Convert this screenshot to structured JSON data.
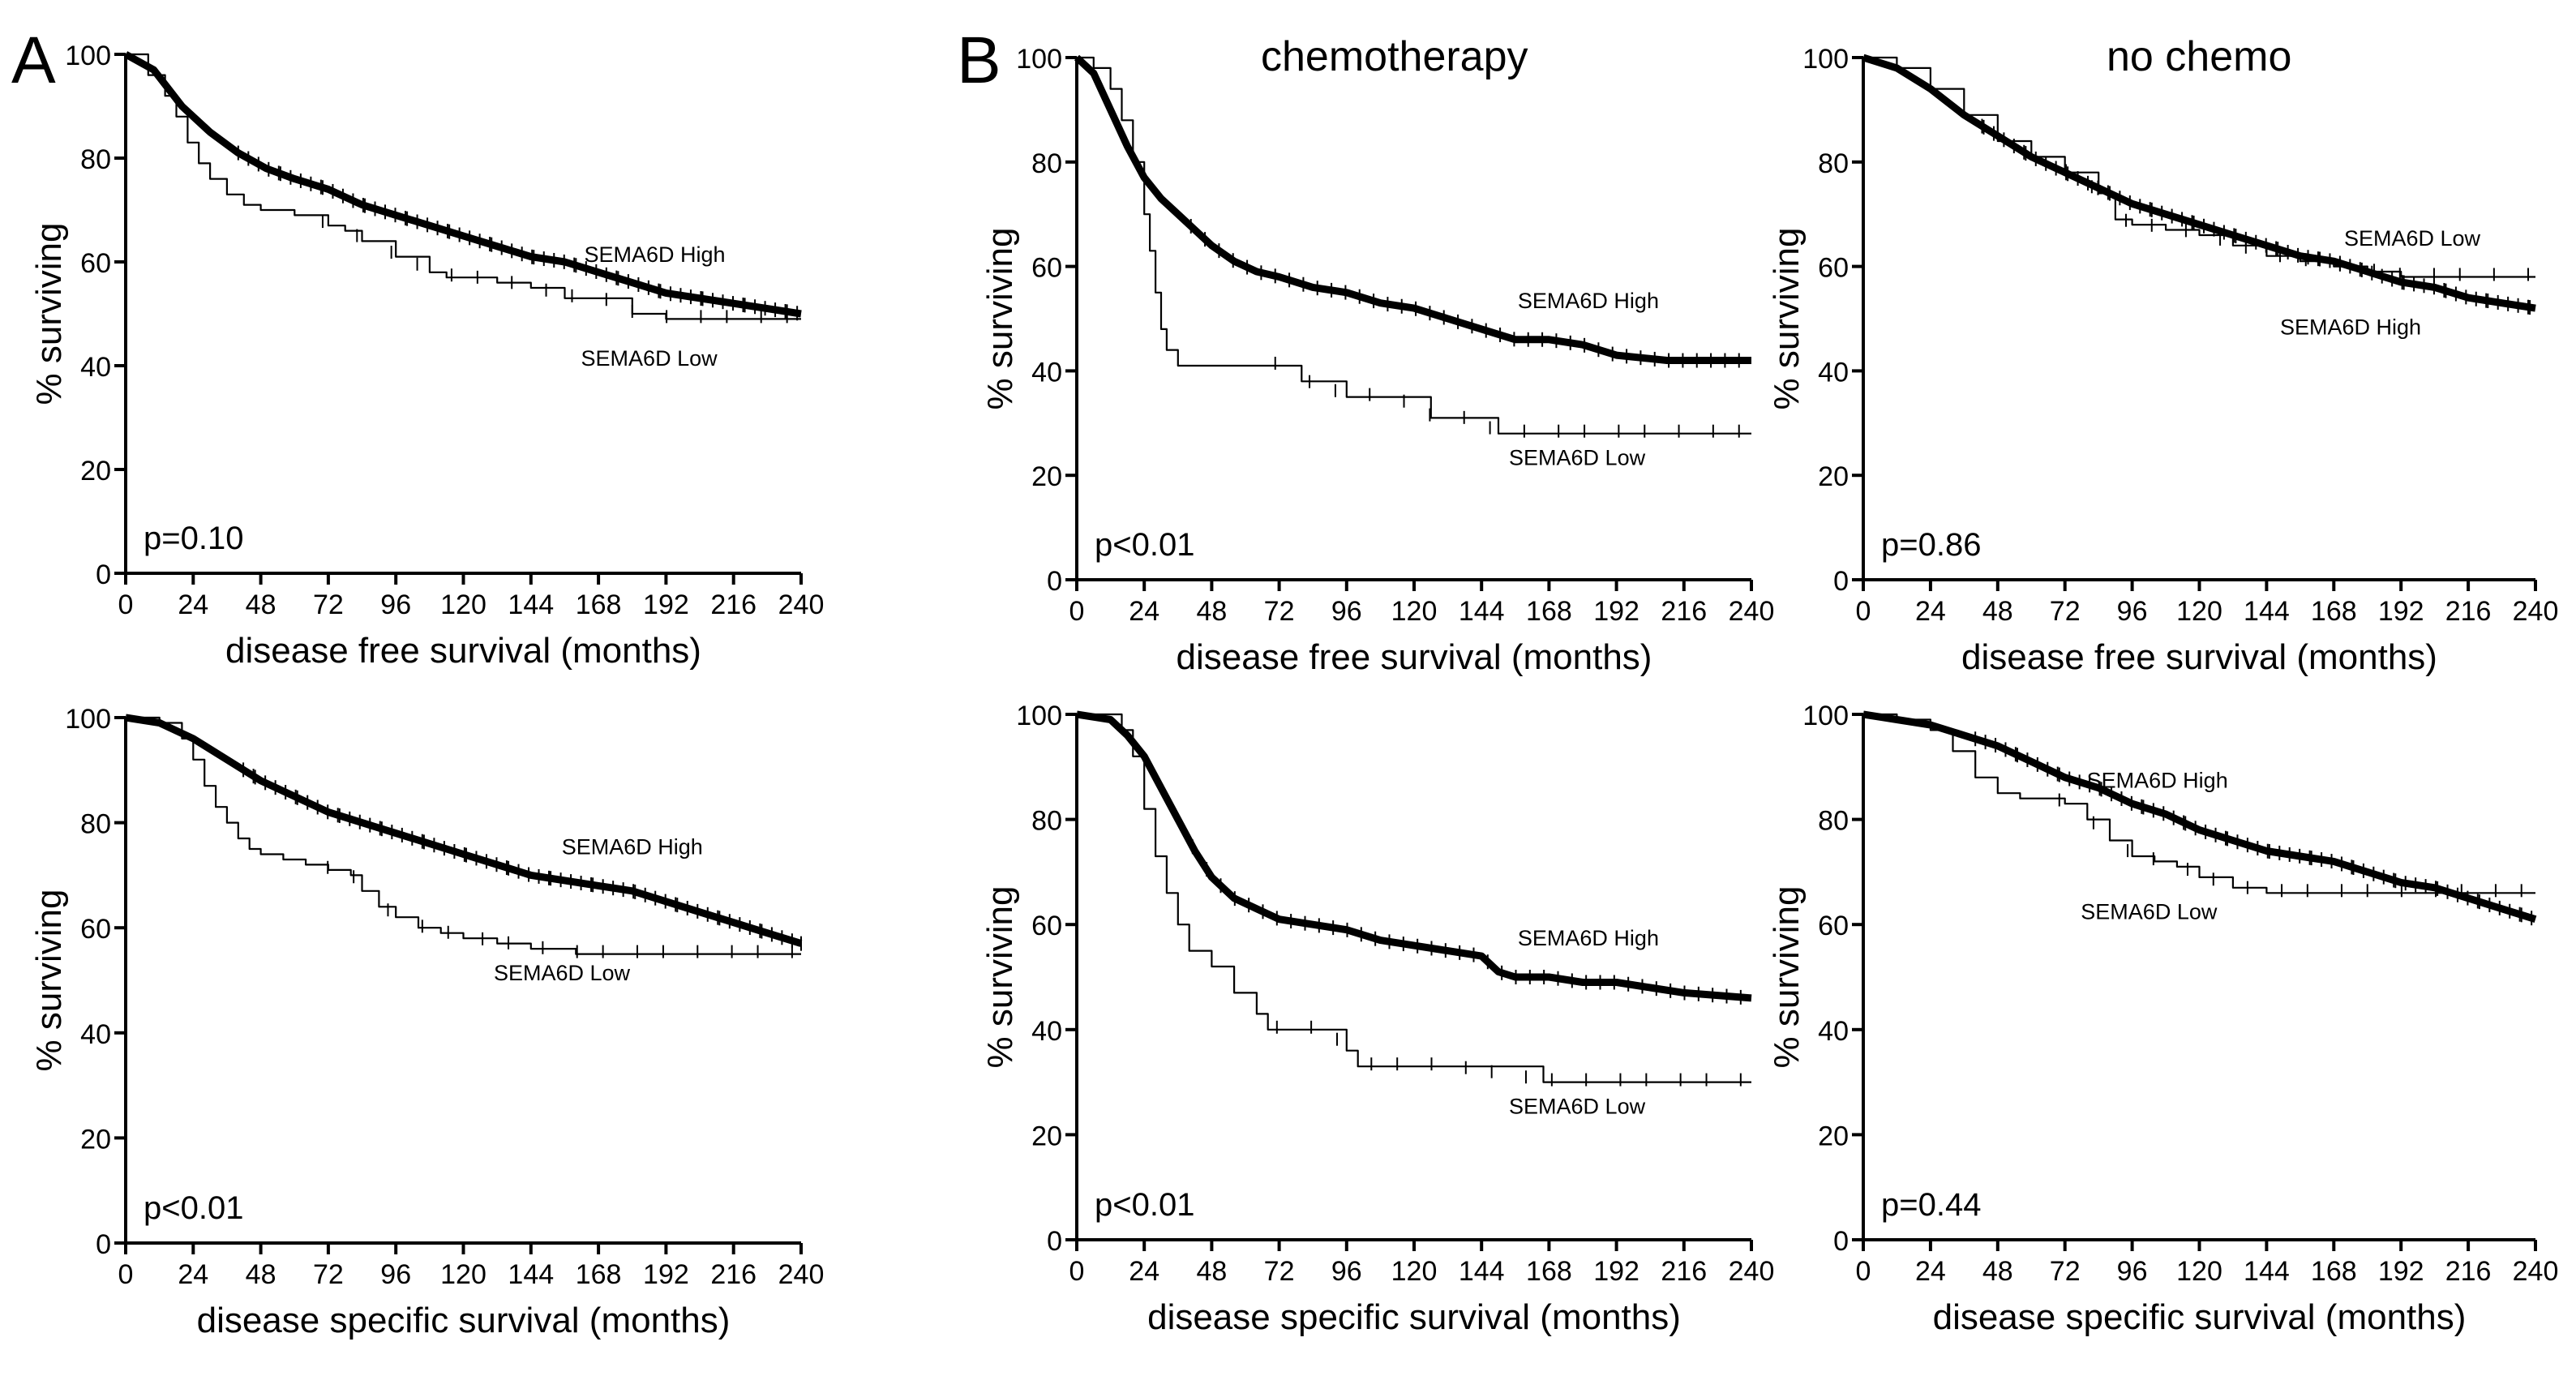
{
  "figure": {
    "panel_labels": [
      "A",
      "B"
    ],
    "column_titles": [
      "chemotherapy",
      "no chemo"
    ]
  },
  "chart_data": [
    {
      "id": "a_dfs",
      "type": "line",
      "panel": "A",
      "title": "",
      "xlabel": "disease free survival (months)",
      "ylabel": "% surviving",
      "xlim": [
        0,
        240
      ],
      "ylim": [
        0,
        100
      ],
      "xticks": [
        0,
        24,
        48,
        72,
        96,
        120,
        144,
        168,
        192,
        216,
        240
      ],
      "yticks": [
        0,
        20,
        40,
        60,
        80,
        100
      ],
      "pvalue": "p=0.10",
      "series": [
        {
          "name": "SEMA6D High",
          "style": "thick",
          "x": [
            0,
            10,
            20,
            30,
            40,
            50,
            60,
            72,
            84,
            96,
            108,
            120,
            132,
            144,
            156,
            168,
            180,
            192,
            204,
            216,
            228,
            240
          ],
          "y": [
            100,
            97,
            90,
            85,
            81,
            78,
            76,
            74,
            71,
            69,
            67,
            65,
            63,
            61,
            60,
            58,
            56,
            54,
            53,
            52,
            51,
            50
          ],
          "censor_density": "heavy"
        },
        {
          "name": "SEMA6D Low",
          "style": "thin",
          "x": [
            0,
            8,
            14,
            18,
            22,
            26,
            30,
            36,
            42,
            48,
            60,
            72,
            78,
            84,
            96,
            108,
            114,
            120,
            132,
            144,
            156,
            168,
            180,
            192,
            216,
            240
          ],
          "y": [
            100,
            96,
            92,
            88,
            83,
            79,
            76,
            73,
            71,
            70,
            69,
            67,
            66,
            64,
            61,
            58,
            57,
            57,
            56,
            55,
            53,
            53,
            50,
            49,
            49,
            49
          ],
          "censor_density": "light"
        }
      ],
      "annotations": [
        {
          "text": "SEMA6D High",
          "near": [
            188,
            60
          ]
        },
        {
          "text": "SEMA6D Low",
          "near": [
            186,
            40
          ]
        }
      ]
    },
    {
      "id": "a_dss",
      "type": "line",
      "panel": "A",
      "title": "",
      "xlabel": "disease specific survival (months)",
      "ylabel": "% surviving",
      "xlim": [
        0,
        240
      ],
      "ylim": [
        0,
        100
      ],
      "xticks": [
        0,
        24,
        48,
        72,
        96,
        120,
        144,
        168,
        192,
        216,
        240
      ],
      "yticks": [
        0,
        20,
        40,
        60,
        80,
        100
      ],
      "pvalue": "p<0.01",
      "series": [
        {
          "name": "SEMA6D High",
          "style": "thick",
          "x": [
            0,
            12,
            24,
            36,
            48,
            60,
            72,
            84,
            96,
            108,
            120,
            132,
            144,
            156,
            168,
            180,
            192,
            204,
            216,
            228,
            240
          ],
          "y": [
            100,
            99,
            96,
            92,
            88,
            85,
            82,
            80,
            78,
            76,
            74,
            72,
            70,
            69,
            68,
            67,
            65,
            63,
            61,
            59,
            57
          ],
          "censor_density": "heavy"
        },
        {
          "name": "SEMA6D Low",
          "style": "thin",
          "x": [
            0,
            12,
            20,
            24,
            28,
            32,
            36,
            40,
            44,
            48,
            56,
            64,
            72,
            80,
            84,
            90,
            96,
            104,
            112,
            120,
            132,
            144,
            160,
            180,
            240
          ],
          "y": [
            100,
            99,
            96,
            92,
            87,
            83,
            80,
            77,
            75,
            74,
            73,
            72,
            71,
            70,
            67,
            64,
            62,
            60,
            59,
            58,
            57,
            56,
            55,
            55,
            55
          ],
          "censor_density": "light"
        }
      ],
      "annotations": [
        {
          "text": "SEMA6D High",
          "near": [
            180,
            74
          ]
        },
        {
          "text": "SEMA6D Low",
          "near": [
            155,
            50
          ]
        }
      ]
    },
    {
      "id": "b_chemo_dfs",
      "type": "line",
      "panel": "B",
      "title": "chemotherapy",
      "xlabel": "disease free survival (months)",
      "ylabel": "% surviving",
      "xlim": [
        0,
        240
      ],
      "ylim": [
        0,
        100
      ],
      "xticks": [
        0,
        24,
        48,
        72,
        96,
        120,
        144,
        168,
        192,
        216,
        240
      ],
      "yticks": [
        0,
        20,
        40,
        60,
        80,
        100
      ],
      "pvalue": "p<0.01",
      "series": [
        {
          "name": "SEMA6D High",
          "style": "thick",
          "x": [
            0,
            6,
            12,
            18,
            24,
            30,
            36,
            42,
            48,
            56,
            64,
            72,
            84,
            96,
            108,
            120,
            132,
            144,
            156,
            168,
            180,
            192,
            210,
            240
          ],
          "y": [
            100,
            97,
            90,
            83,
            77,
            73,
            70,
            67,
            64,
            61,
            59,
            58,
            56,
            55,
            53,
            52,
            50,
            48,
            46,
            46,
            45,
            43,
            42,
            42
          ],
          "censor_density": "medium"
        },
        {
          "name": "SEMA6D Low",
          "style": "thin",
          "x": [
            0,
            6,
            12,
            16,
            20,
            24,
            26,
            28,
            30,
            32,
            36,
            44,
            56,
            72,
            80,
            96,
            112,
            126,
            136,
            150,
            240
          ],
          "y": [
            100,
            98,
            94,
            88,
            80,
            70,
            63,
            55,
            48,
            44,
            41,
            41,
            41,
            41,
            38,
            35,
            35,
            31,
            31,
            28,
            28
          ],
          "censor_density": "light"
        }
      ],
      "annotations": [
        {
          "text": "SEMA6D High",
          "near": [
            182,
            52
          ]
        },
        {
          "text": "SEMA6D Low",
          "near": [
            178,
            22
          ]
        }
      ]
    },
    {
      "id": "b_nochemo_dfs",
      "type": "line",
      "panel": "B",
      "title": "no chemo",
      "xlabel": "disease free survival (months)",
      "ylabel": "% surviving",
      "xlim": [
        0,
        240
      ],
      "ylim": [
        0,
        100
      ],
      "xticks": [
        0,
        24,
        48,
        72,
        96,
        120,
        144,
        168,
        192,
        216,
        240
      ],
      "yticks": [
        0,
        20,
        40,
        60,
        80,
        100
      ],
      "pvalue": "p=0.86",
      "series": [
        {
          "name": "SEMA6D High",
          "style": "thick",
          "x": [
            0,
            12,
            24,
            36,
            48,
            60,
            72,
            84,
            96,
            108,
            120,
            132,
            144,
            156,
            168,
            180,
            192,
            204,
            216,
            228,
            240
          ],
          "y": [
            100,
            98,
            94,
            89,
            85,
            81,
            78,
            75,
            72,
            70,
            68,
            66,
            64,
            62,
            61,
            59,
            57,
            56,
            54,
            53,
            52
          ],
          "censor_density": "heavy"
        },
        {
          "name": "SEMA6D Low",
          "style": "thin",
          "x": [
            0,
            12,
            24,
            36,
            48,
            60,
            72,
            84,
            90,
            96,
            108,
            120,
            132,
            144,
            156,
            168,
            180,
            192,
            204,
            216,
            240
          ],
          "y": [
            100,
            98,
            94,
            89,
            84,
            81,
            78,
            74,
            69,
            68,
            67,
            66,
            64,
            62,
            61,
            60,
            59,
            58,
            58,
            58,
            58
          ],
          "censor_density": "light"
        }
      ],
      "annotations": [
        {
          "text": "SEMA6D Low",
          "near": [
            196,
            64
          ]
        },
        {
          "text": "SEMA6D High",
          "near": [
            174,
            47
          ]
        }
      ]
    },
    {
      "id": "b_chemo_dss",
      "type": "line",
      "panel": "B",
      "title": "",
      "xlabel": "disease specific survival (months)",
      "ylabel": "% surviving",
      "xlim": [
        0,
        240
      ],
      "ylim": [
        0,
        100
      ],
      "xticks": [
        0,
        24,
        48,
        72,
        96,
        120,
        144,
        168,
        192,
        216,
        240
      ],
      "yticks": [
        0,
        20,
        40,
        60,
        80,
        100
      ],
      "pvalue": "p<0.01",
      "series": [
        {
          "name": "SEMA6D High",
          "style": "thick",
          "x": [
            0,
            12,
            18,
            24,
            30,
            36,
            42,
            48,
            56,
            64,
            72,
            84,
            96,
            108,
            120,
            132,
            144,
            150,
            156,
            168,
            180,
            192,
            204,
            216,
            240
          ],
          "y": [
            100,
            99,
            96,
            92,
            86,
            80,
            74,
            69,
            65,
            63,
            61,
            60,
            59,
            57,
            56,
            55,
            54,
            51,
            50,
            50,
            49,
            49,
            48,
            47,
            46
          ],
          "censor_density": "medium"
        },
        {
          "name": "SEMA6D Low",
          "style": "thin",
          "x": [
            0,
            12,
            16,
            20,
            24,
            28,
            32,
            36,
            40,
            48,
            56,
            64,
            68,
            76,
            88,
            96,
            100,
            130,
            166,
            240
          ],
          "y": [
            100,
            100,
            97,
            92,
            82,
            73,
            66,
            60,
            55,
            52,
            47,
            43,
            40,
            40,
            40,
            36,
            33,
            33,
            30,
            30
          ],
          "censor_density": "light"
        }
      ],
      "annotations": [
        {
          "text": "SEMA6D High",
          "near": [
            182,
            56
          ]
        },
        {
          "text": "SEMA6D Low",
          "near": [
            178,
            24
          ]
        }
      ]
    },
    {
      "id": "b_nochemo_dss",
      "type": "line",
      "panel": "B",
      "title": "",
      "xlabel": "disease specific survival (months)",
      "ylabel": "% surviving",
      "xlim": [
        0,
        240
      ],
      "ylim": [
        0,
        100
      ],
      "xticks": [
        0,
        24,
        48,
        72,
        96,
        120,
        144,
        168,
        192,
        216,
        240
      ],
      "yticks": [
        0,
        20,
        40,
        60,
        80,
        100
      ],
      "pvalue": "p=0.44",
      "series": [
        {
          "name": "SEMA6D High",
          "style": "thick",
          "x": [
            0,
            12,
            24,
            36,
            48,
            60,
            72,
            84,
            96,
            108,
            120,
            132,
            144,
            156,
            168,
            180,
            192,
            204,
            216,
            228,
            240
          ],
          "y": [
            100,
            99,
            98,
            96,
            94,
            91,
            88,
            86,
            83,
            81,
            78,
            76,
            74,
            73,
            72,
            70,
            68,
            67,
            65,
            63,
            61
          ],
          "censor_density": "heavy"
        },
        {
          "name": "SEMA6D Low",
          "style": "thin",
          "x": [
            0,
            12,
            24,
            32,
            40,
            48,
            56,
            64,
            72,
            80,
            88,
            96,
            104,
            112,
            120,
            132,
            144,
            160,
            180,
            200,
            220,
            240
          ],
          "y": [
            100,
            99,
            97,
            93,
            88,
            85,
            84,
            84,
            83,
            80,
            76,
            73,
            72,
            71,
            69,
            67,
            66,
            66,
            66,
            66,
            66,
            66
          ],
          "censor_density": "light"
        }
      ],
      "annotations": [
        {
          "text": "SEMA6D High",
          "near": [
            105,
            86
          ]
        },
        {
          "text": "SEMA6D Low",
          "near": [
            102,
            61
          ]
        }
      ]
    }
  ]
}
